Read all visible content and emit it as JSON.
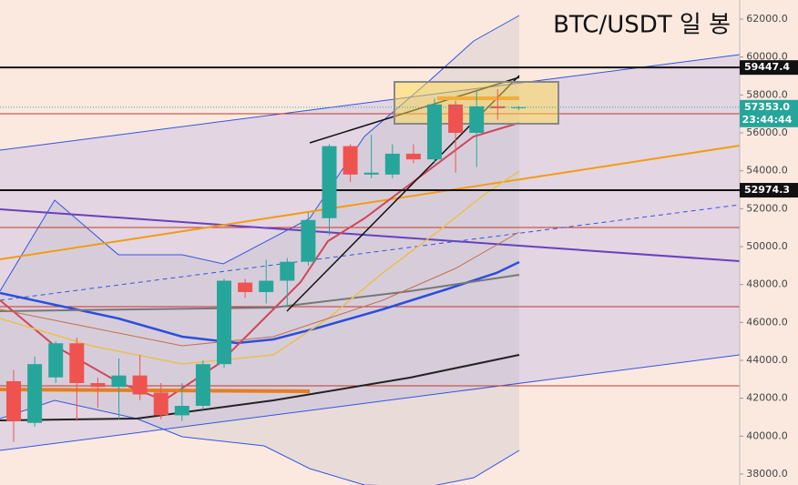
{
  "chart_data": {
    "type": "candlestick",
    "title": "BTC/USDT 일 봉",
    "open": [
      42900,
      40700,
      43100,
      44900,
      42800,
      42600,
      43200,
      42300,
      41100,
      41600,
      43800,
      48100,
      47600,
      48200,
      49200,
      51500,
      55300,
      53800,
      53800,
      54900,
      54600,
      57500,
      56000,
      57400,
      57300
    ],
    "high": [
      43500,
      44200,
      45000,
      45200,
      43100,
      44100,
      44300,
      42800,
      42800,
      44000,
      48300,
      48300,
      49300,
      49400,
      51800,
      55400,
      55400,
      55900,
      55400,
      55400,
      57800,
      57700,
      58200,
      58300,
      57400
    ],
    "low": [
      39700,
      40500,
      42800,
      40800,
      41500,
      40900,
      41900,
      40900,
      40800,
      41400,
      43600,
      47300,
      47000,
      46800,
      49000,
      50600,
      53400,
      53600,
      53600,
      54400,
      54400,
      53900,
      54200,
      56700,
      57200
    ],
    "close": [
      40800,
      43800,
      44900,
      42800,
      42600,
      43200,
      42200,
      41100,
      41600,
      43800,
      48200,
      47600,
      48200,
      49200,
      51400,
      55300,
      53800,
      53900,
      54900,
      54600,
      57500,
      56000,
      57400,
      57300,
      57353
    ],
    "up_color": "#26a69a",
    "down_color": "#ef5350",
    "ylim": [
      37424,
      63008
    ],
    "yticks": [
      {
        "value": 38000,
        "label": "38000.0"
      },
      {
        "value": 40000,
        "label": "40000.0"
      },
      {
        "value": 42000,
        "label": "42000.0"
      },
      {
        "value": 44000,
        "label": "44000.0"
      },
      {
        "value": 46000,
        "label": "46000.0"
      },
      {
        "value": 48000,
        "label": "48000.0"
      },
      {
        "value": 50000,
        "label": "50000.0"
      },
      {
        "value": 52000,
        "label": "52000.0"
      },
      {
        "value": 54000,
        "label": "54000.0"
      },
      {
        "value": 56000,
        "label": "56000.0"
      },
      {
        "value": 58000,
        "label": "58000.0"
      },
      {
        "value": 60000,
        "label": "60000.0"
      },
      {
        "value": 62000,
        "label": "62000.0"
      }
    ],
    "price_lines": [
      59447.4,
      52974.3
    ],
    "last_price": {
      "value": 57353,
      "label": "57353.0"
    },
    "countdown": "23:44:44"
  }
}
